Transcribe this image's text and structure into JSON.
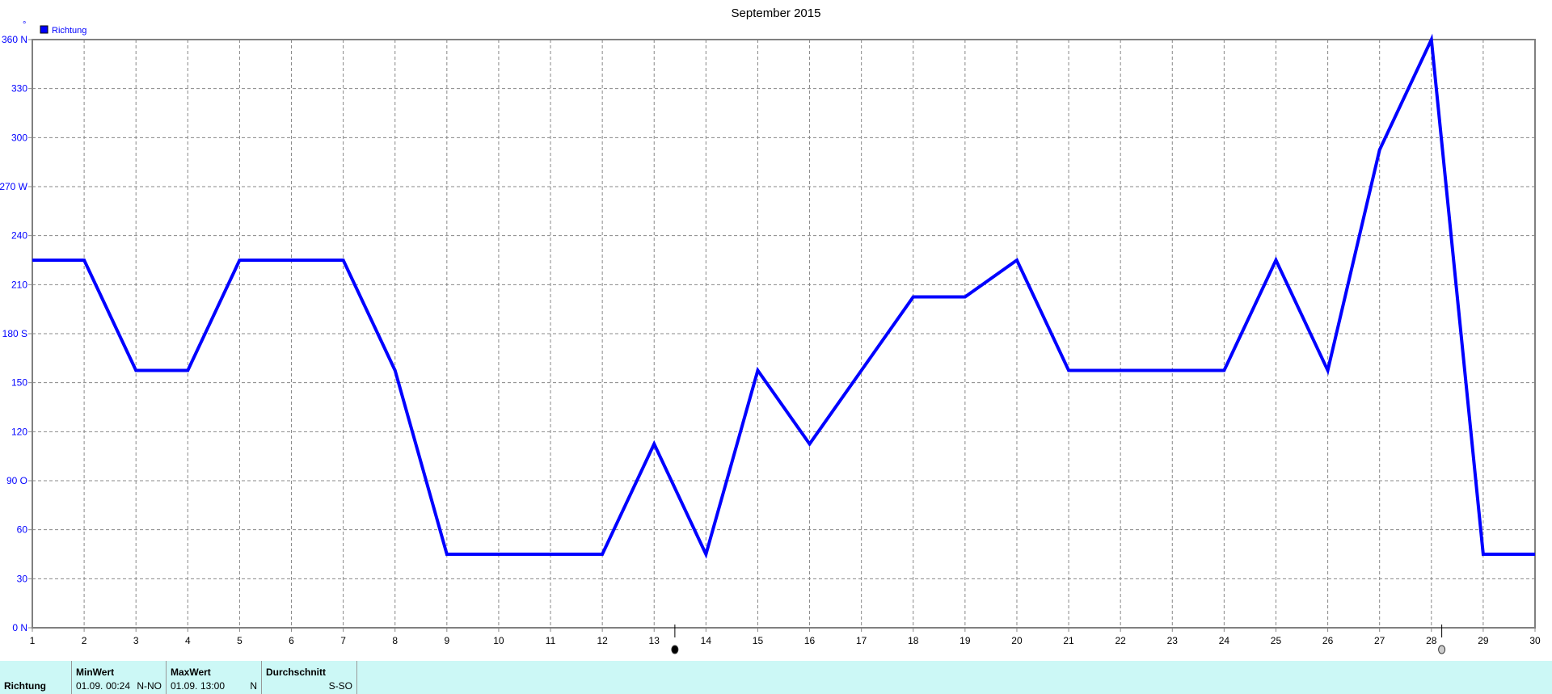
{
  "chart_data": {
    "type": "line",
    "title": "September 2015",
    "ylabel": "°",
    "x": [
      1,
      2,
      3,
      4,
      5,
      6,
      7,
      8,
      9,
      10,
      11,
      12,
      13,
      14,
      15,
      16,
      17,
      18,
      19,
      20,
      21,
      22,
      23,
      24,
      25,
      26,
      27,
      28,
      29,
      30
    ],
    "series": [
      {
        "name": "Richtung",
        "color": "#0000ff",
        "values": [
          225,
          225,
          157.5,
          157.5,
          225,
          225,
          225,
          157.5,
          45,
          45,
          45,
          45,
          112.5,
          45,
          157.5,
          112.5,
          157.5,
          202.5,
          202.5,
          225,
          157.5,
          157.5,
          157.5,
          157.5,
          225,
          157.5,
          292.5,
          360,
          45,
          45
        ]
      }
    ],
    "xlim": [
      1,
      30
    ],
    "ylim": [
      0,
      360
    ],
    "yticks": [
      {
        "v": 0,
        "label": "0   N"
      },
      {
        "v": 30,
        "label": "30"
      },
      {
        "v": 60,
        "label": "60"
      },
      {
        "v": 90,
        "label": "90  O"
      },
      {
        "v": 120,
        "label": "120"
      },
      {
        "v": 150,
        "label": "150"
      },
      {
        "v": 180,
        "label": "180 S"
      },
      {
        "v": 210,
        "label": "210"
      },
      {
        "v": 240,
        "label": "240"
      },
      {
        "v": 270,
        "label": "270 W"
      },
      {
        "v": 300,
        "label": "300"
      },
      {
        "v": 330,
        "label": "330"
      },
      {
        "v": 360,
        "label": "360 N"
      }
    ],
    "grid": true,
    "legend": "top-left",
    "moon_phases": [
      {
        "phase": "new-moon",
        "x": 13.4
      },
      {
        "phase": "full-moon",
        "x": 28.2
      }
    ]
  },
  "footer": {
    "row_label": "Richtung",
    "min": {
      "header": "MinWert",
      "date": "01.09.",
      "time": "00:24",
      "value": "N-NO"
    },
    "max": {
      "header": "MaxWert",
      "date": "01.09.",
      "time": "13:00",
      "value": "N"
    },
    "avg": {
      "header": "Durchschnitt",
      "value": "S-SO"
    }
  }
}
